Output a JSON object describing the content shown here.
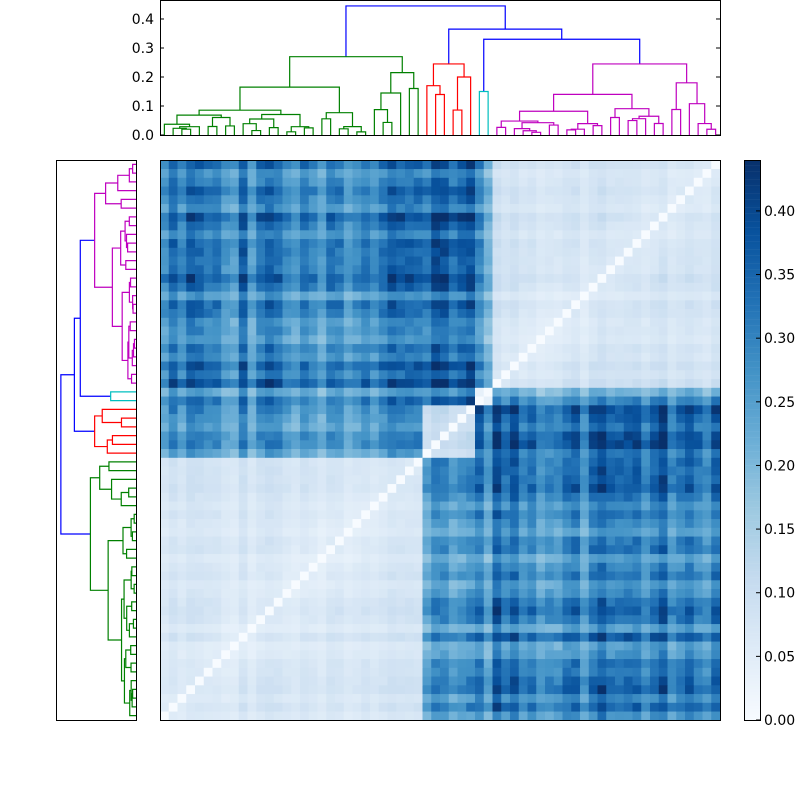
{
  "chart_data": {
    "type": "heatmap",
    "title": "",
    "description_kind": "clustered distance matrix with dendrograms",
    "leaf_count": 64,
    "clusters": [
      {
        "name": "green",
        "color": "#008000",
        "size": 30
      },
      {
        "name": "red",
        "color": "#ff0000",
        "size": 6
      },
      {
        "name": "cyan",
        "color": "#00bfbf",
        "size": 2
      },
      {
        "name": "magenta",
        "color": "#bf00bf",
        "size": 26
      }
    ],
    "link_color_above_threshold": "#0000ff",
    "block_mean_distance": [
      [
        0.07,
        0.24,
        0.27,
        0.3
      ],
      [
        0.24,
        0.11,
        0.3,
        0.33
      ],
      [
        0.27,
        0.3,
        0.05,
        0.25
      ],
      [
        0.3,
        0.33,
        0.25,
        0.08
      ]
    ],
    "tree": {
      "h": 0.445,
      "color": "#0000ff",
      "children": [
        {
          "h": 0.27,
          "cluster": 0,
          "children": [
            {
              "h": 0.165,
              "cluster": 0,
              "n": 24
            },
            {
              "h": 0.215,
              "cluster": 0,
              "n": 6
            }
          ]
        },
        {
          "h": 0.365,
          "color": "#0000ff",
          "children": [
            {
              "h": 0.245,
              "cluster": 1,
              "children": [
                {
                  "h": 0.17,
                  "cluster": 1,
                  "n": 3
                },
                {
                  "h": 0.2,
                  "cluster": 1,
                  "n": 3
                }
              ]
            },
            {
              "h": 0.33,
              "color": "#0000ff",
              "children": [
                {
                  "h": 0.15,
                  "cluster": 2,
                  "n": 2
                },
                {
                  "h": 0.245,
                  "cluster": 3,
                  "children": [
                    {
                      "h": 0.14,
                      "cluster": 3,
                      "n": 20
                    },
                    {
                      "h": 0.18,
                      "cluster": 3,
                      "n": 6
                    }
                  ]
                }
              ]
            }
          ]
        }
      ]
    },
    "dendrogram_axis": {
      "ticks": [
        "0.0",
        "0.1",
        "0.2",
        "0.3",
        "0.4"
      ],
      "values": [
        0,
        0.1,
        0.2,
        0.3,
        0.4
      ],
      "max": 0.462
    },
    "colorbar": {
      "colormap": "Blues",
      "vmin": 0.0,
      "vmax": 0.44,
      "ticks": [
        "0.00",
        "0.05",
        "0.10",
        "0.15",
        "0.20",
        "0.25",
        "0.30",
        "0.35",
        "0.40"
      ],
      "values": [
        0,
        0.05,
        0.1,
        0.15,
        0.2,
        0.25,
        0.3,
        0.35,
        0.4
      ]
    },
    "colormap_stops": [
      "#f7fbff",
      "#deebf7",
      "#c6dbef",
      "#9ecae1",
      "#6baed6",
      "#4292c6",
      "#2171b5",
      "#08519c",
      "#08306b"
    ]
  }
}
